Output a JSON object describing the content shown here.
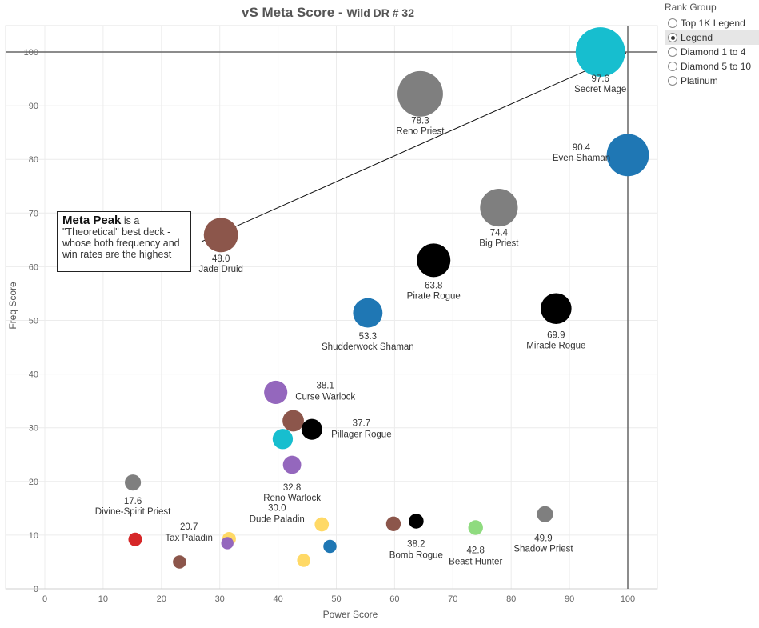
{
  "title": {
    "main": "vS Meta Score - ",
    "sub": "Wild DR # 32"
  },
  "legend": {
    "title": "Rank Group",
    "options": [
      {
        "label": "Top 1K Legend",
        "selected": false
      },
      {
        "label": "Legend",
        "selected": true
      },
      {
        "label": "Diamond 1 to 4",
        "selected": false
      },
      {
        "label": "Diamond 5 to 10",
        "selected": false
      },
      {
        "label": "Platinum",
        "selected": false
      }
    ]
  },
  "annotation": {
    "bold": "Meta Peak",
    "rest": " is a \"Theoretical\" best deck - whose both frequency and win rates are the highest"
  },
  "chart_data": {
    "type": "scatter",
    "title": "vS Meta Score - Wild DR # 32",
    "xlabel": "Power Score",
    "ylabel": "Freq Score",
    "xlim": [
      0,
      105
    ],
    "ylim": [
      0,
      105
    ],
    "x_ticks": [
      0,
      10,
      20,
      30,
      40,
      50,
      60,
      70,
      80,
      90,
      100
    ],
    "y_ticks": [
      0,
      10,
      20,
      30,
      40,
      50,
      60,
      70,
      80,
      90,
      100
    ],
    "grid": true,
    "reference_lines": {
      "x": 100,
      "y": 100
    },
    "points": [
      {
        "name": "Secret Mage",
        "score": "97.6",
        "x": 95.3,
        "y": 100.0,
        "color": "#17becf"
      },
      {
        "name": "Reno Priest",
        "score": "78.3",
        "x": 64.4,
        "y": 92.2,
        "color": "#7f7f7f"
      },
      {
        "name": "Even Shaman",
        "score": "90.4",
        "x": 100.0,
        "y": 80.8,
        "color": "#1f77b4"
      },
      {
        "name": "Big Priest",
        "score": "74.4",
        "x": 77.9,
        "y": 71.0,
        "color": "#7f7f7f"
      },
      {
        "name": "Jade Druid",
        "score": "48.0",
        "x": 30.2,
        "y": 65.9,
        "color": "#8c564b"
      },
      {
        "name": "Pirate Rogue",
        "score": "63.8",
        "x": 66.7,
        "y": 61.2,
        "color": "#000000"
      },
      {
        "name": "Shudderwock Shaman",
        "score": "53.3",
        "x": 55.4,
        "y": 51.4,
        "color": "#1f77b4"
      },
      {
        "name": "Miracle Rogue",
        "score": "69.9",
        "x": 87.7,
        "y": 52.2,
        "color": "#000000"
      },
      {
        "name": "Curse Warlock",
        "score": "38.1",
        "x": 39.6,
        "y": 36.6,
        "color": "#9467bd"
      },
      {
        "name": "",
        "score": "",
        "x": 42.6,
        "y": 31.3,
        "color": "#8c564b"
      },
      {
        "name": "Pillager Rogue",
        "score": "37.7",
        "x": 45.8,
        "y": 29.7,
        "color": "#000000"
      },
      {
        "name": "",
        "score": "",
        "x": 40.8,
        "y": 27.9,
        "color": "#17becf"
      },
      {
        "name": "Reno Warlock",
        "score": "32.8",
        "x": 42.4,
        "y": 23.1,
        "color": "#9467bd"
      },
      {
        "name": "Divine-Spirit Priest",
        "score": "17.6",
        "x": 15.1,
        "y": 19.8,
        "color": "#7f7f7f"
      },
      {
        "name": "",
        "score": "",
        "x": 15.5,
        "y": 9.2,
        "color": "#d62728"
      },
      {
        "name": "",
        "score": "",
        "x": 23.1,
        "y": 5.0,
        "color": "#8c564b"
      },
      {
        "name": "",
        "score": "",
        "x": 31.6,
        "y": 9.3,
        "color": "#ffd966"
      },
      {
        "name": "Tax Paladin",
        "score": "20.7",
        "x": 31.3,
        "y": 8.5,
        "color": "#9467bd"
      },
      {
        "name": "Dude Paladin",
        "score": "30.0",
        "x": 47.5,
        "y": 12.0,
        "color": "#ffd966"
      },
      {
        "name": "",
        "score": "",
        "x": 44.4,
        "y": 5.3,
        "color": "#ffd966"
      },
      {
        "name": "",
        "score": "",
        "x": 48.9,
        "y": 7.9,
        "color": "#1f77b4"
      },
      {
        "name": "",
        "score": "",
        "x": 59.8,
        "y": 12.1,
        "color": "#8c564b"
      },
      {
        "name": "Bomb Rogue",
        "score": "38.2",
        "x": 63.7,
        "y": 12.6,
        "color": "#000000"
      },
      {
        "name": "Beast Hunter",
        "score": "42.8",
        "x": 73.9,
        "y": 11.4,
        "color": "#8fdb7f"
      },
      {
        "name": "Shadow Priest",
        "score": "49.9",
        "x": 85.8,
        "y": 13.9,
        "color": "#7f7f7f"
      }
    ]
  }
}
